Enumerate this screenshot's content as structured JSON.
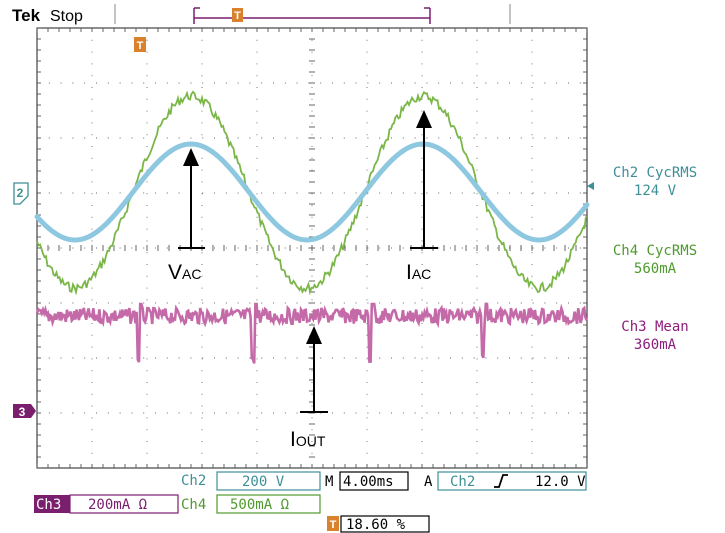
{
  "header": {
    "brand": "Tek",
    "status": "Stop",
    "trigger_marker": "T"
  },
  "channels": {
    "ch2_marker": "2",
    "ch3_marker": "3"
  },
  "measurements": [
    {
      "name": "Ch2 CycRMS",
      "value": "124 V",
      "color": "#3e8f98"
    },
    {
      "name": "Ch4 CycRMS",
      "value": "560mA",
      "color": "#4f9a2e"
    },
    {
      "name": "Ch3 Mean",
      "value": "360mA",
      "color": "#8b1e7c"
    }
  ],
  "annotations": {
    "vac_main": "V",
    "vac_sub": "AC",
    "iac_main": "I",
    "iac_sub": "AC",
    "iout_main": "I",
    "iout_sub": "OUT"
  },
  "settings": {
    "ch2_label": "Ch2",
    "ch2_scale": "200 V",
    "timebase_label": "M",
    "timebase": "4.00ms",
    "trigger_mode": "A",
    "trigger_source": "Ch2",
    "trigger_level": "12.0 V",
    "ch3_label": "Ch3",
    "ch3_scale": "200mA Ω",
    "ch4_label": "Ch4",
    "ch4_scale": "500mA Ω",
    "trigger_position": "18.60 %"
  },
  "colors": {
    "ch2": "#8ec8e0",
    "ch3": "#c46aa8",
    "ch4": "#7ab648",
    "grid": "#444444",
    "trigger": "#d9822b"
  }
}
